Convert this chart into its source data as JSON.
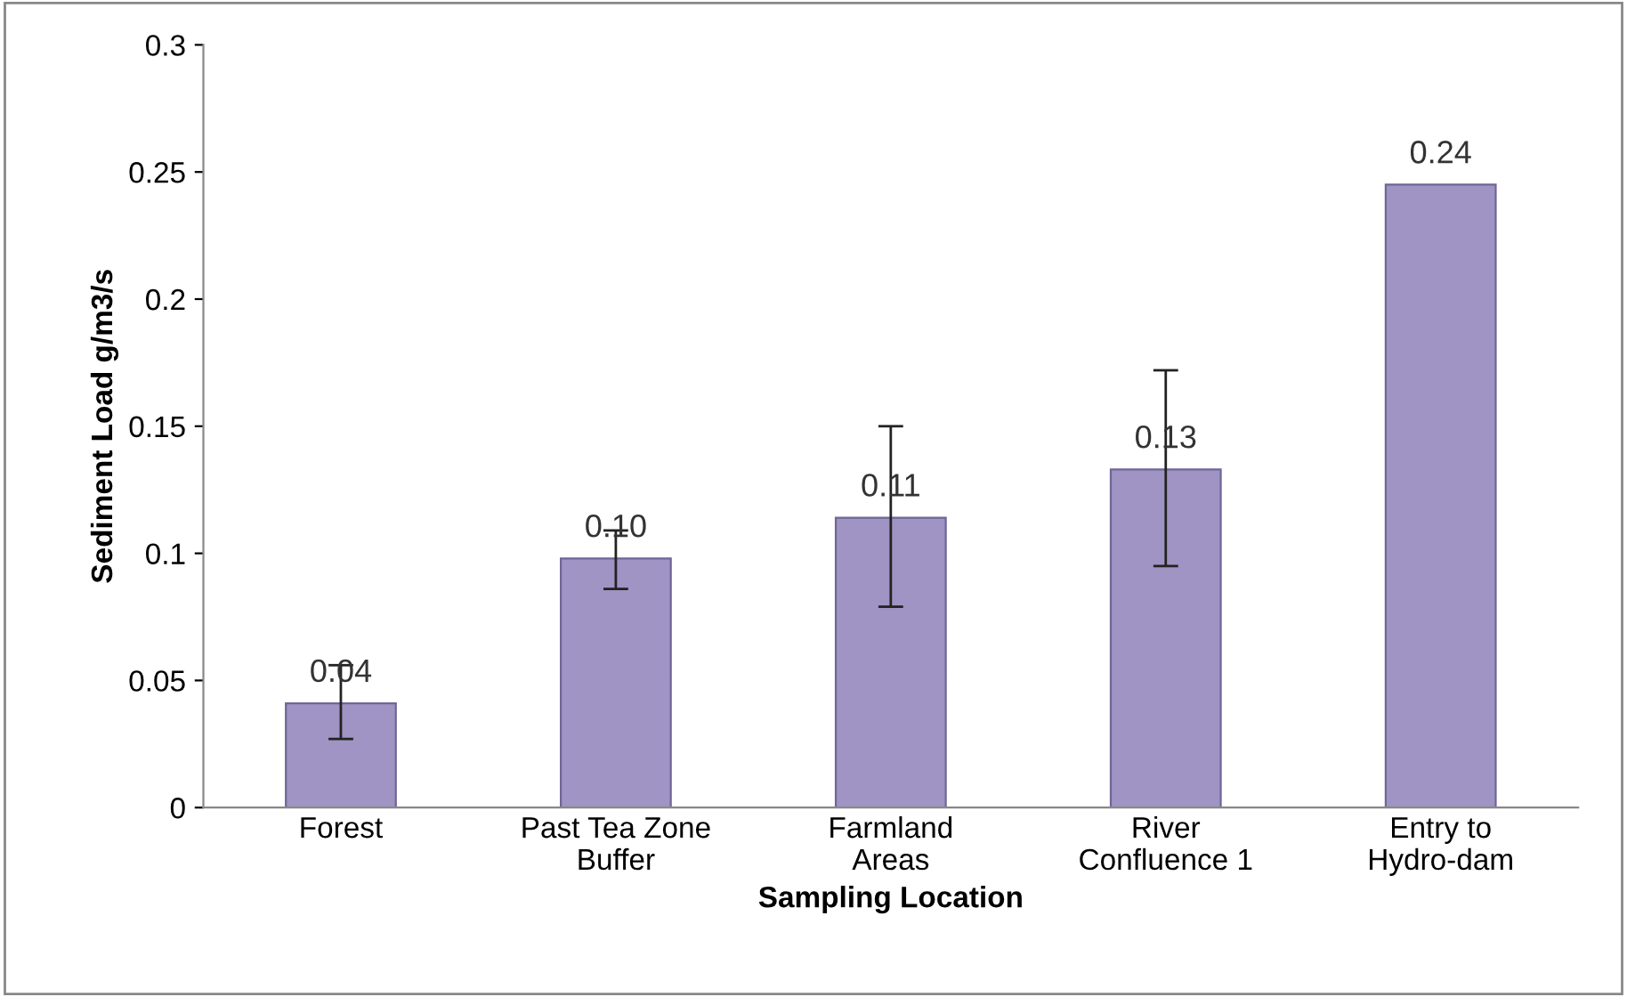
{
  "chart_data": {
    "type": "bar",
    "xlabel": "Sampling Location",
    "ylabel": "Sediment Load g/m3/s",
    "categories": [
      "Forest",
      "Past Tea Zone\nBuffer",
      "Farmland\nAreas",
      "River\nConfluence 1",
      "Entry to\nHydro-dam"
    ],
    "values": [
      0.041,
      0.098,
      0.114,
      0.133,
      0.245
    ],
    "errors": [
      [
        0.027,
        0.056
      ],
      [
        0.086,
        0.109
      ],
      [
        0.079,
        0.15
      ],
      [
        0.095,
        0.172
      ],
      null
    ],
    "value_labels": [
      "0.04",
      "0.10",
      "0.11",
      "0.13",
      "0.24"
    ],
    "color": "#9f94c4",
    "ylim": [
      0,
      0.3
    ],
    "yticks": [
      0,
      0.05,
      {
        "value": 0.1,
        "label": "0.1"
      },
      0.15,
      {
        "value": 0.2,
        "label": "0.2"
      },
      0.25,
      {
        "value": 0.3,
        "label": "0.3"
      }
    ],
    "grid": false,
    "legend": false
  }
}
